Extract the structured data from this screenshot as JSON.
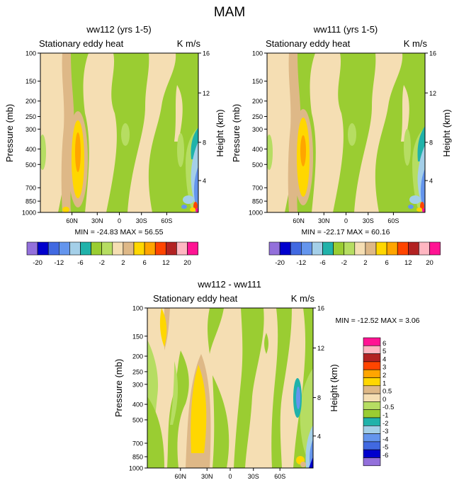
{
  "figure_title": "MAM",
  "colors": {
    "palette": [
      "#9370db",
      "#0000cd",
      "#4169e1",
      "#6495ed",
      "#a4cfe8",
      "#20b2aa",
      "#9acd32",
      "#b6dd62",
      "#f5deb3",
      "#deb887",
      "#ffd700",
      "#ffa500",
      "#ff4500",
      "#b22222",
      "#ffb6c1",
      "#ff1493"
    ]
  },
  "chart_data": [
    {
      "type": "contour",
      "id": "left",
      "title": "ww112 (yrs 1-5)",
      "left_label": "Stationary eddy heat",
      "units": "K m/s",
      "ylabel": "Pressure (mb)",
      "y2label": "Height (km)",
      "y_ticks": [
        "100",
        "150",
        "200",
        "250",
        "300",
        "400",
        "500",
        "700",
        "850",
        "1000"
      ],
      "y2_ticks": [
        "16",
        "12",
        "8",
        "4"
      ],
      "x_ticks": [
        "60N",
        "30N",
        "0",
        "30S",
        "60S"
      ],
      "stats": "MIN = -24.83   MAX =  56.55",
      "colorbar": {
        "labels": [
          "-20",
          "-12",
          "-6",
          "-2",
          "2",
          "6",
          "12",
          "20"
        ],
        "levels": [
          -20,
          -16,
          -12,
          -8,
          -6,
          -4,
          -2,
          0,
          2,
          4,
          6,
          8,
          12,
          16,
          20
        ]
      }
    },
    {
      "type": "contour",
      "id": "right",
      "title": "ww111 (yrs 1-5)",
      "left_label": "Stationary eddy heat",
      "units": "K m/s",
      "ylabel": "Pressure (mb)",
      "y2label": "Height (km)",
      "y_ticks": [
        "100",
        "150",
        "200",
        "250",
        "300",
        "400",
        "500",
        "700",
        "850",
        "1000"
      ],
      "y2_ticks": [
        "16",
        "12",
        "8",
        "4"
      ],
      "x_ticks": [
        "60N",
        "30N",
        "0",
        "30S",
        "60S"
      ],
      "stats": "MIN = -22.17   MAX =  60.16",
      "colorbar": {
        "labels": [
          "-20",
          "-12",
          "-6",
          "-2",
          "2",
          "6",
          "12",
          "20"
        ],
        "levels": [
          -20,
          -16,
          -12,
          -8,
          -6,
          -4,
          -2,
          0,
          2,
          4,
          6,
          8,
          12,
          16,
          20
        ]
      }
    },
    {
      "type": "contour",
      "id": "diff",
      "title": "ww112 - ww111",
      "left_label": "Stationary eddy heat",
      "units": "K m/s",
      "ylabel": "Pressure (mb)",
      "y2label": "Height (km)",
      "y_ticks": [
        "100",
        "150",
        "200",
        "250",
        "300",
        "400",
        "500",
        "700",
        "850",
        "1000"
      ],
      "y2_ticks": [
        "16",
        "12",
        "8",
        "4"
      ],
      "x_ticks": [
        "60N",
        "30N",
        "0",
        "30S",
        "60S"
      ],
      "stats": "MIN = -12.52   MAX =    3.06",
      "colorbar": {
        "labels": [
          "6",
          "5",
          "4",
          "3",
          "2",
          "1",
          "0.5",
          "0",
          "-0.5",
          "-1",
          "-2",
          "-3",
          "-4",
          "-5",
          "-6"
        ]
      }
    }
  ]
}
